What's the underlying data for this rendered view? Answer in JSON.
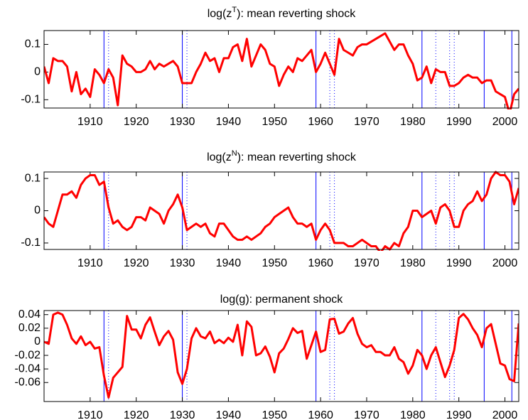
{
  "chart_data": [
    {
      "type": "line",
      "title": [
        "log(z",
        "T",
        "): mean reverting shock"
      ],
      "color": "#ff0000",
      "x": [
        1900,
        1901,
        1902,
        1903,
        1904,
        1905,
        1906,
        1907,
        1908,
        1909,
        1910,
        1911,
        1912,
        1913,
        1914,
        1915,
        1916,
        1917,
        1918,
        1919,
        1920,
        1921,
        1922,
        1923,
        1924,
        1925,
        1926,
        1927,
        1928,
        1929,
        1930,
        1931,
        1932,
        1933,
        1934,
        1935,
        1936,
        1937,
        1938,
        1939,
        1940,
        1941,
        1942,
        1943,
        1944,
        1945,
        1946,
        1947,
        1948,
        1949,
        1950,
        1951,
        1952,
        1953,
        1954,
        1955,
        1956,
        1957,
        1958,
        1959,
        1960,
        1961,
        1962,
        1963,
        1964,
        1965,
        1966,
        1967,
        1968,
        1969,
        1970,
        1971,
        1972,
        1973,
        1974,
        1975,
        1976,
        1977,
        1978,
        1979,
        1980,
        1981,
        1982,
        1983,
        1984,
        1985,
        1986,
        1987,
        1988,
        1989,
        1990,
        1991,
        1992,
        1993,
        1994,
        1995,
        1996,
        1997,
        1998,
        1999,
        2000,
        2001,
        2002,
        2003
      ],
      "values": [
        0.02,
        -0.04,
        0.05,
        0.04,
        0.04,
        0.02,
        -0.07,
        0.0,
        -0.08,
        -0.06,
        -0.09,
        0.01,
        -0.01,
        -0.04,
        0.01,
        -0.02,
        -0.12,
        0.06,
        0.03,
        0.02,
        0.0,
        0.0,
        0.01,
        0.04,
        0.01,
        0.03,
        0.02,
        0.03,
        0.04,
        0.02,
        -0.04,
        -0.04,
        -0.04,
        0.0,
        0.03,
        0.07,
        0.04,
        0.05,
        0.0,
        0.05,
        0.05,
        0.09,
        0.1,
        0.04,
        0.12,
        0.02,
        0.06,
        0.1,
        0.08,
        0.03,
        0.02,
        -0.05,
        -0.01,
        0.02,
        0.0,
        0.05,
        0.04,
        0.06,
        0.08,
        0.0,
        0.03,
        0.07,
        0.03,
        -0.01,
        0.12,
        0.08,
        0.07,
        0.06,
        0.09,
        0.1,
        0.1,
        0.11,
        0.12,
        0.13,
        0.14,
        0.11,
        0.08,
        0.1,
        0.1,
        0.06,
        0.03,
        -0.03,
        -0.02,
        0.02,
        -0.04,
        0.01,
        0.0,
        0.0,
        -0.05,
        -0.05,
        -0.04,
        -0.02,
        -0.01,
        -0.02,
        -0.02,
        -0.04,
        -0.03,
        -0.03,
        -0.07,
        -0.08,
        -0.09,
        -0.15,
        -0.08,
        -0.06
      ],
      "xlim": [
        1900,
        2003
      ],
      "xticks": [
        1910,
        1920,
        1930,
        1940,
        1950,
        1960,
        1970,
        1980,
        1990,
        2000
      ],
      "ylim": [
        -0.13,
        0.15
      ],
      "yticks": [
        -0.1,
        0,
        0.1
      ],
      "vline_color": "#0000ff",
      "vlines": [
        1913,
        1930,
        1959,
        1982,
        1995.5,
        2001.5
      ],
      "vlines_dotted": [
        1914,
        1931,
        1962,
        1963,
        1985,
        1988,
        1989,
        2003
      ]
    },
    {
      "type": "line",
      "title": [
        "log(z",
        "N",
        "): mean reverting shock"
      ],
      "color": "#ff0000",
      "x": [
        1900,
        1901,
        1902,
        1903,
        1904,
        1905,
        1906,
        1907,
        1908,
        1909,
        1910,
        1911,
        1912,
        1913,
        1914,
        1915,
        1916,
        1917,
        1918,
        1919,
        1920,
        1921,
        1922,
        1923,
        1924,
        1925,
        1926,
        1927,
        1928,
        1929,
        1930,
        1931,
        1932,
        1933,
        1934,
        1935,
        1936,
        1937,
        1938,
        1939,
        1940,
        1941,
        1942,
        1943,
        1944,
        1945,
        1946,
        1947,
        1948,
        1949,
        1950,
        1951,
        1952,
        1953,
        1954,
        1955,
        1956,
        1957,
        1958,
        1959,
        1960,
        1961,
        1962,
        1963,
        1964,
        1965,
        1966,
        1967,
        1968,
        1969,
        1970,
        1971,
        1972,
        1973,
        1974,
        1975,
        1976,
        1977,
        1978,
        1979,
        1980,
        1981,
        1982,
        1983,
        1984,
        1985,
        1986,
        1987,
        1988,
        1989,
        1990,
        1991,
        1992,
        1993,
        1994,
        1995,
        1996,
        1997,
        1998,
        1999,
        2000,
        2001,
        2002,
        2003
      ],
      "values": [
        -0.02,
        -0.04,
        -0.05,
        0.0,
        0.05,
        0.05,
        0.06,
        0.04,
        0.08,
        0.1,
        0.11,
        0.11,
        0.08,
        0.09,
        0.01,
        -0.04,
        -0.03,
        -0.05,
        -0.06,
        -0.05,
        -0.02,
        -0.02,
        -0.03,
        0.01,
        0.0,
        -0.01,
        -0.04,
        0.0,
        0.02,
        0.05,
        0.01,
        -0.06,
        -0.05,
        -0.04,
        -0.05,
        -0.04,
        -0.07,
        -0.08,
        -0.04,
        -0.04,
        -0.06,
        -0.08,
        -0.09,
        -0.09,
        -0.08,
        -0.09,
        -0.08,
        -0.07,
        -0.05,
        -0.04,
        -0.02,
        -0.01,
        0.0,
        0.01,
        -0.02,
        -0.04,
        -0.04,
        -0.05,
        -0.04,
        -0.09,
        -0.06,
        -0.04,
        -0.06,
        -0.1,
        -0.1,
        -0.1,
        -0.11,
        -0.11,
        -0.1,
        -0.09,
        -0.1,
        -0.11,
        -0.11,
        -0.13,
        -0.11,
        -0.12,
        -0.1,
        -0.11,
        -0.07,
        -0.05,
        0.0,
        0.0,
        -0.02,
        -0.01,
        0.0,
        -0.04,
        0.01,
        0.02,
        0.0,
        -0.05,
        -0.05,
        0.0,
        0.02,
        0.03,
        0.06,
        0.03,
        0.05,
        0.1,
        0.12,
        0.11,
        0.11,
        0.09,
        0.02,
        0.07
      ],
      "xlim": [
        1900,
        2003
      ],
      "xticks": [
        1910,
        1920,
        1930,
        1940,
        1950,
        1960,
        1970,
        1980,
        1990,
        2000
      ],
      "ylim": [
        -0.12,
        0.12
      ],
      "yticks": [
        -0.1,
        0,
        0.1
      ],
      "vline_color": "#0000ff",
      "vlines": [
        1913,
        1930,
        1959,
        1982,
        1995.5,
        2001.5
      ],
      "vlines_dotted": [
        1914,
        1931,
        1962,
        1963,
        1985,
        1988,
        1989,
        2003
      ]
    },
    {
      "type": "line",
      "title": [
        "log(g): permanent shock"
      ],
      "color": "#ff0000",
      "x": [
        1900,
        1901,
        1902,
        1903,
        1904,
        1905,
        1906,
        1907,
        1908,
        1909,
        1910,
        1911,
        1912,
        1913,
        1914,
        1915,
        1916,
        1917,
        1918,
        1919,
        1920,
        1921,
        1922,
        1923,
        1924,
        1925,
        1926,
        1927,
        1928,
        1929,
        1930,
        1931,
        1932,
        1933,
        1934,
        1935,
        1936,
        1937,
        1938,
        1939,
        1940,
        1941,
        1942,
        1943,
        1944,
        1945,
        1946,
        1947,
        1948,
        1949,
        1950,
        1951,
        1952,
        1953,
        1954,
        1955,
        1956,
        1957,
        1958,
        1959,
        1960,
        1961,
        1962,
        1963,
        1964,
        1965,
        1966,
        1967,
        1968,
        1969,
        1970,
        1971,
        1972,
        1973,
        1974,
        1975,
        1976,
        1977,
        1978,
        1979,
        1980,
        1981,
        1982,
        1983,
        1984,
        1985,
        1986,
        1987,
        1988,
        1989,
        1990,
        1991,
        1992,
        1993,
        1994,
        1995,
        1996,
        1997,
        1998,
        1999,
        2000,
        2001,
        2002,
        2003
      ],
      "values": [
        0.0,
        -0.003,
        0.04,
        0.043,
        0.04,
        0.025,
        0.005,
        -0.003,
        0.008,
        -0.005,
        0.0,
        -0.01,
        -0.008,
        -0.05,
        -0.082,
        -0.053,
        -0.045,
        -0.037,
        0.038,
        0.018,
        0.018,
        0.005,
        0.025,
        0.036,
        0.015,
        -0.005,
        0.008,
        0.016,
        0.003,
        -0.045,
        -0.062,
        -0.04,
        0.005,
        0.02,
        0.008,
        0.005,
        0.015,
        -0.002,
        0.003,
        -0.002,
        0.006,
        0.0,
        0.025,
        -0.02,
        0.03,
        0.022,
        -0.02,
        -0.017,
        -0.007,
        -0.022,
        -0.045,
        -0.017,
        -0.01,
        0.004,
        0.02,
        0.013,
        0.016,
        -0.025,
        -0.005,
        0.015,
        -0.015,
        -0.012,
        0.033,
        0.034,
        0.012,
        0.015,
        0.027,
        0.035,
        0.012,
        -0.003,
        -0.008,
        -0.005,
        -0.015,
        -0.015,
        -0.02,
        -0.02,
        -0.008,
        -0.025,
        -0.03,
        -0.047,
        -0.035,
        -0.012,
        -0.02,
        -0.04,
        -0.02,
        -0.008,
        -0.03,
        -0.052,
        -0.035,
        -0.012,
        0.035,
        0.041,
        0.033,
        0.02,
        0.01,
        -0.008,
        0.02,
        0.026,
        -0.003,
        -0.032,
        -0.035,
        -0.055,
        -0.058,
        0.027
      ],
      "xlim": [
        1900,
        2003
      ],
      "xticks": [
        1910,
        1920,
        1930,
        1940,
        1950,
        1960,
        1970,
        1980,
        1990,
        2000
      ],
      "ylim": [
        -0.088,
        0.046
      ],
      "yticks": [
        -0.06,
        -0.04,
        -0.02,
        0,
        0.02,
        0.04
      ],
      "vline_color": "#0000ff",
      "vlines": [
        1913,
        1930,
        1959,
        1982,
        1995.5,
        2001.5
      ],
      "vlines_dotted": [
        1914,
        1931,
        1962,
        1963,
        1985,
        1988,
        1989,
        2003
      ]
    }
  ]
}
